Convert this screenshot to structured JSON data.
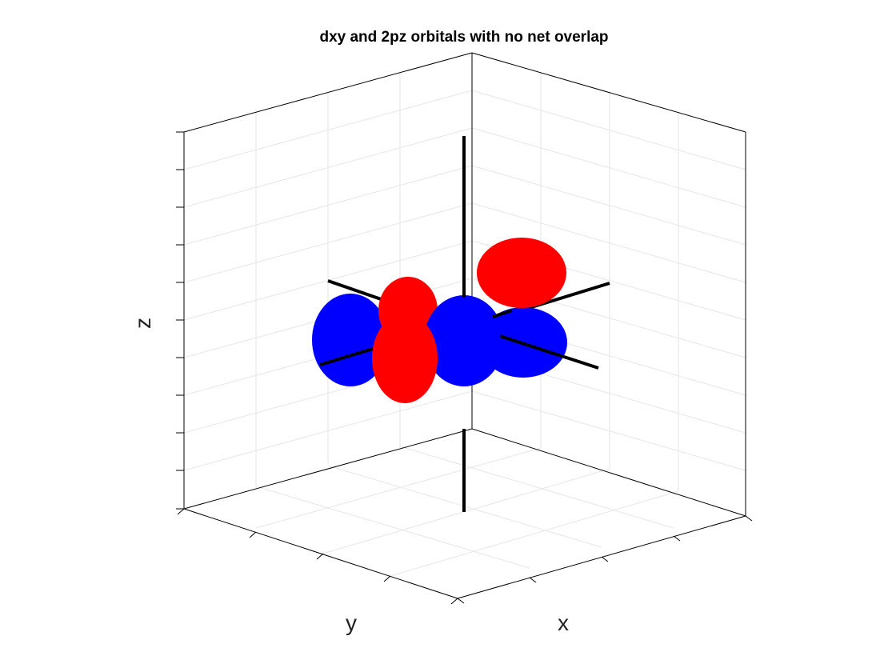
{
  "figure": {
    "title": "dxy and 2pz orbitals with no net overlap",
    "xlabel": "x",
    "ylabel": "y",
    "zlabel": "z"
  },
  "colors": {
    "positive_lobe": "#ff0000",
    "negative_lobe": "#0000ff",
    "axes_lines": "#000000",
    "box": "#000000",
    "grid": "#e6e6e6",
    "background": "#ffffff"
  },
  "view": {
    "projection": "3-D axonometric",
    "grid": true,
    "box": "partial (back walls drawn)",
    "tick_labels_shown": false
  },
  "orbitals": [
    {
      "name": "dxy",
      "lobe_signs": [
        "+",
        "-",
        "+",
        "-"
      ]
    },
    {
      "name": "2pz",
      "lobe_signs": [
        "+",
        "-"
      ]
    }
  ]
}
